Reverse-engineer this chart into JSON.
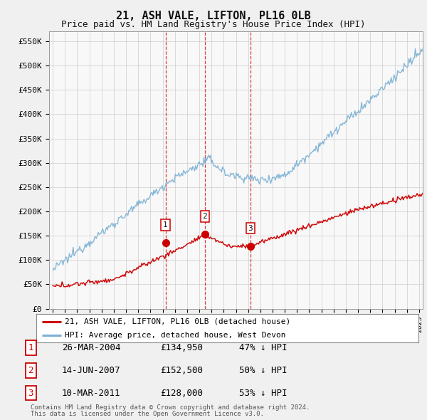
{
  "title": "21, ASH VALE, LIFTON, PL16 0LB",
  "subtitle": "Price paid vs. HM Land Registry's House Price Index (HPI)",
  "ylabel_ticks": [
    "£0",
    "£50K",
    "£100K",
    "£150K",
    "£200K",
    "£250K",
    "£300K",
    "£350K",
    "£400K",
    "£450K",
    "£500K",
    "£550K"
  ],
  "ytick_values": [
    0,
    50000,
    100000,
    150000,
    200000,
    250000,
    300000,
    350000,
    400000,
    450000,
    500000,
    550000
  ],
  "ylim": [
    0,
    570000
  ],
  "xlim_start": 1994.7,
  "xlim_end": 2025.3,
  "red_color": "#cc0000",
  "blue_color": "#7ab0d4",
  "sale_dates": [
    2004.23,
    2007.45,
    2011.19
  ],
  "sale_prices": [
    134950,
    152500,
    128000
  ],
  "sale_labels": [
    "1",
    "2",
    "3"
  ],
  "sale_date_strs": [
    "26-MAR-2004",
    "14-JUN-2007",
    "10-MAR-2011"
  ],
  "sale_price_strs": [
    "£134,950",
    "£152,500",
    "£128,000"
  ],
  "sale_hpi_strs": [
    "47% ↓ HPI",
    "50% ↓ HPI",
    "53% ↓ HPI"
  ],
  "legend_line1": "21, ASH VALE, LIFTON, PL16 0LB (detached house)",
  "legend_line2": "HPI: Average price, detached house, West Devon",
  "footer1": "Contains HM Land Registry data © Crown copyright and database right 2024.",
  "footer2": "This data is licensed under the Open Government Licence v3.0.",
  "title_fontsize": 11,
  "subtitle_fontsize": 9,
  "background_color": "#f0f0f0"
}
